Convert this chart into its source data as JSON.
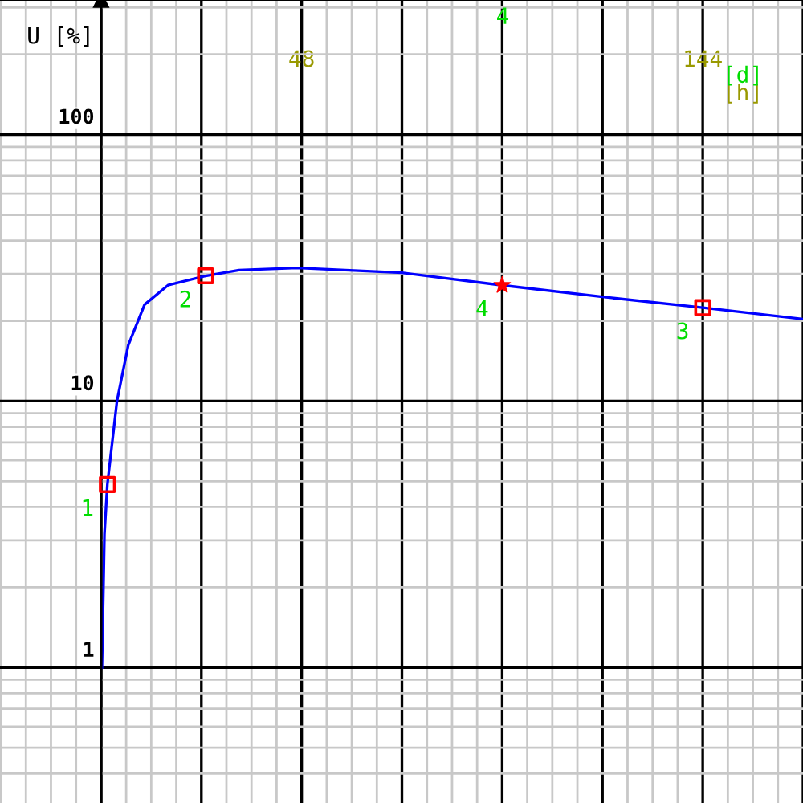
{
  "chart_data": {
    "type": "line",
    "ylabel": "U [%]",
    "xlabel": "[h]",
    "log": "y",
    "xlim": [
      -24.2,
      168
    ],
    "ylim": [
      0.31,
      320
    ],
    "xticks": [
      {
        "value": 0,
        "label": null
      },
      {
        "value": 24,
        "label": null
      },
      {
        "value": 48,
        "label": "48"
      },
      {
        "value": 72,
        "label": null
      },
      {
        "value": 96,
        "label": null
      },
      {
        "value": 120,
        "label": null
      },
      {
        "value": 144,
        "label": "144"
      },
      {
        "value": 168,
        "label": null
      }
    ],
    "yticks": [
      1,
      10,
      100
    ],
    "grid": true,
    "series": [
      {
        "color": "#0000ff",
        "marker": "none",
        "x": [
          0.2,
          0.8,
          1.5,
          3.8,
          6.5,
          10.4,
          16,
          25,
          33,
          47,
          72,
          96,
          120,
          144,
          168
        ],
        "values": [
          1,
          3.16,
          4.86,
          10,
          16.2,
          23,
          27.2,
          29.5,
          31,
          31.6,
          30.3,
          27.2,
          24.6,
          22.4,
          20.3
        ]
      },
      {
        "type": "scatter",
        "color": "#ff0000",
        "marker": "square",
        "x": [
          1.5,
          25,
          144
        ],
        "values": [
          4.86,
          29.5,
          22.4
        ]
      },
      {
        "type": "scatter",
        "color": "#ff0000",
        "marker": "star",
        "x": [
          96
        ],
        "values": [
          27.2
        ]
      }
    ],
    "annotations": [
      {
        "text": "1",
        "x": 1.5,
        "y": 4.86
      },
      {
        "text": "2",
        "x": 25,
        "y": 29.5
      },
      {
        "text": "4",
        "x": 96,
        "y": 27.2
      },
      {
        "text": "3",
        "x": 144,
        "y": 22.4
      },
      "4",
      "[d]"
    ]
  }
}
